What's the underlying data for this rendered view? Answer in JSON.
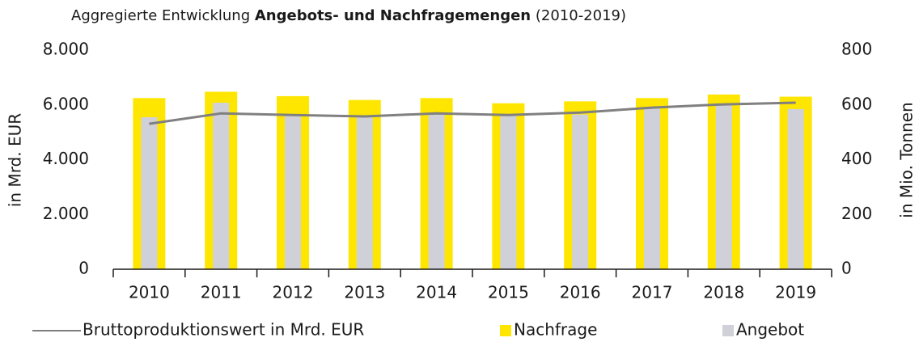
{
  "chart_data": {
    "type": "bar",
    "title_parts": [
      "Aggregierte Entwicklung",
      "Angebots- und Nachfragemengen",
      "(2010-2019)"
    ],
    "y_label": "in Mrd. EUR",
    "y2_label": "in Mio. Tonnen",
    "categories": [
      "2010",
      "2011",
      "2012",
      "2013",
      "2014",
      "2015",
      "2016",
      "2017",
      "2018",
      "2019"
    ],
    "series": [
      {
        "name": "Bruttoproduktionswert in Mrd. EUR",
        "type": "line",
        "color": "#808080",
        "values": [
          5310,
          5690,
          5630,
          5580,
          5690,
          5630,
          5720,
          5900,
          6020,
          6080
        ]
      },
      {
        "name": "Nachfrage",
        "type": "bar",
        "color": "#ffe600",
        "values": [
          6250,
          6480,
          6320,
          6180,
          6250,
          6060,
          6130,
          6250,
          6380,
          6300
        ]
      },
      {
        "name": "Angebot",
        "type": "bar",
        "color": "#d0d0d8",
        "values": [
          5550,
          6080,
          5650,
          5550,
          5650,
          5600,
          5650,
          5870,
          6050,
          5850
        ]
      }
    ],
    "ylim": [
      0,
      8000
    ],
    "yticks": [
      {
        "value": 0,
        "label": "0"
      },
      {
        "value": 2000,
        "label": "2.000"
      },
      {
        "value": 4000,
        "label": "4.000"
      },
      {
        "value": 6000,
        "label": "6.000"
      },
      {
        "value": 8000,
        "label": "8.000"
      }
    ],
    "y2lim": [
      0,
      800
    ],
    "y2ticks": [
      0,
      200,
      400,
      600,
      800
    ],
    "grid": false
  }
}
